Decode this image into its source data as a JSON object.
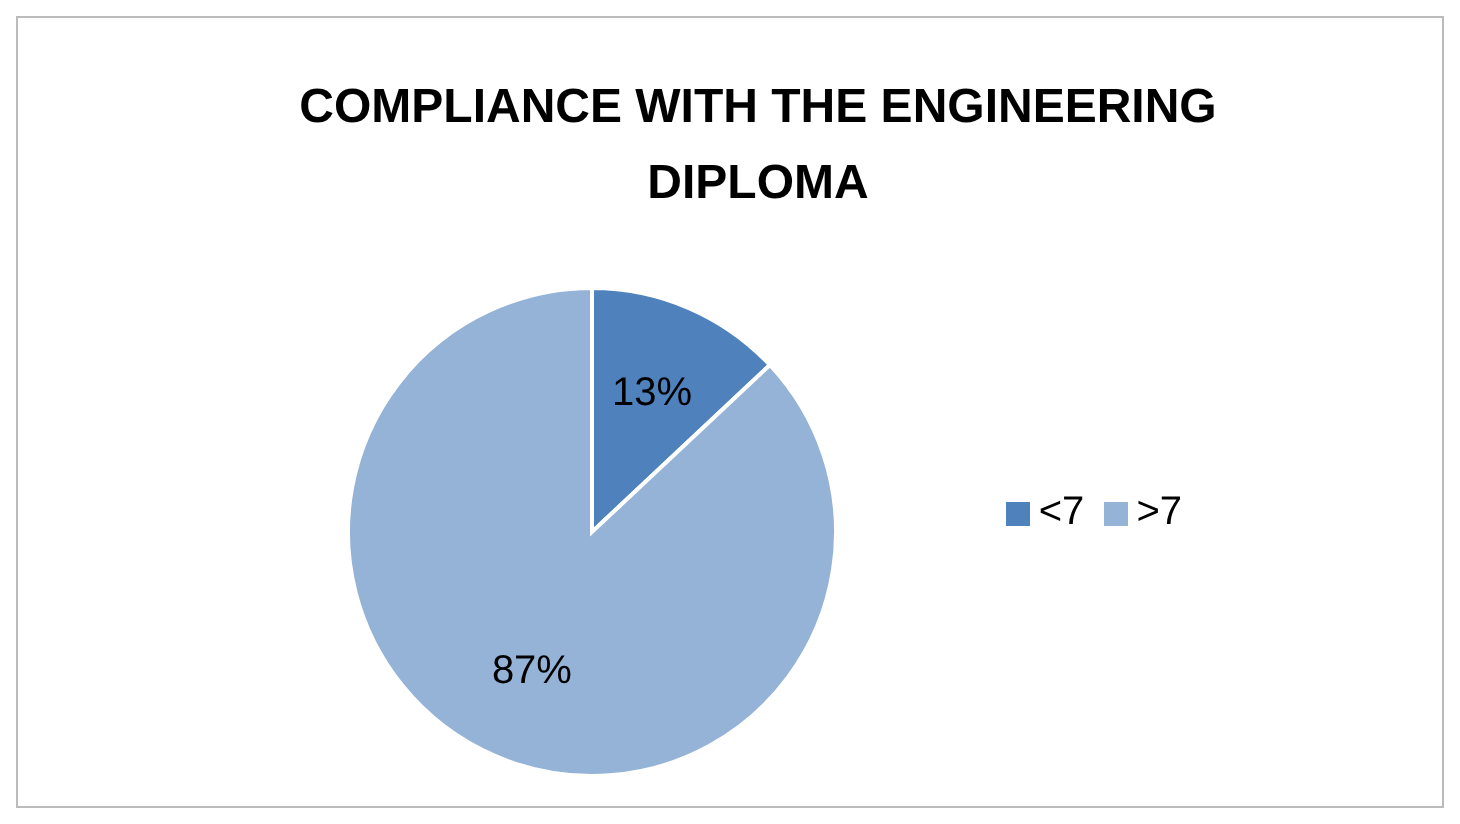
{
  "chart_data": {
    "type": "pie",
    "title": "COMPLIANCE WITH THE ENGINEERING DIPLOMA",
    "categories": [
      "<7",
      ">7"
    ],
    "values": [
      13,
      87
    ],
    "colors": [
      "#4f81bd",
      "#95b3d7"
    ],
    "value_labels": [
      "13%",
      "87%"
    ],
    "legend": "right"
  }
}
